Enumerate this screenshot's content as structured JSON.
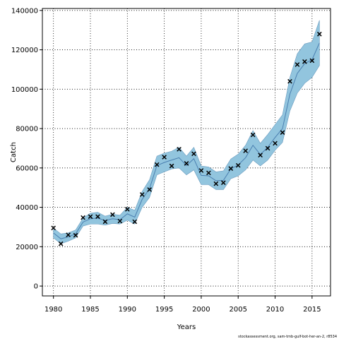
{
  "chart_data": {
    "type": "line",
    "title": "",
    "xlabel": "Years",
    "ylabel": "Catch",
    "xlim": [
      1978.5,
      2017.5
    ],
    "ylim": [
      -5000,
      141000
    ],
    "xticks": [
      1980,
      1985,
      1990,
      1995,
      2000,
      2005,
      2010,
      2015
    ],
    "yticks": [
      0,
      20000,
      40000,
      60000,
      80000,
      100000,
      120000,
      140000
    ],
    "grid": true,
    "legend": "none",
    "colors": {
      "band": "#92c5de",
      "band_edge": "#6a9bbf",
      "line": "#4a7fb0",
      "marker": "#000000",
      "grid": "#000000"
    },
    "series": [
      {
        "kind": "band",
        "x": [
          1980,
          1981,
          1982,
          1983,
          1984,
          1985,
          1986,
          1987,
          1988,
          1989,
          1990,
          1991,
          1992,
          1993,
          1994,
          1995,
          1996,
          1997,
          1998,
          1999,
          2000,
          2001,
          2002,
          2003,
          2004,
          2005,
          2006,
          2007,
          2008,
          2009,
          2010,
          2011,
          2012,
          2013,
          2014,
          2015,
          2016
        ],
        "low": [
          24500,
          21500,
          22800,
          24500,
          30500,
          31500,
          31500,
          31000,
          31800,
          31500,
          33500,
          31500,
          40000,
          45000,
          56500,
          58000,
          59500,
          60000,
          56500,
          59000,
          51500,
          51500,
          49000,
          49000,
          54500,
          56000,
          59000,
          64000,
          61000,
          64000,
          69000,
          73000,
          89000,
          98000,
          103000,
          106000,
          112000
        ],
        "high": [
          29500,
          26500,
          27000,
          28500,
          34500,
          37000,
          37500,
          35500,
          36500,
          36000,
          40000,
          38500,
          48000,
          54000,
          66000,
          67500,
          68500,
          70500,
          66000,
          70500,
          61000,
          60500,
          58000,
          58500,
          64500,
          67000,
          71500,
          79000,
          72500,
          77000,
          82000,
          87000,
          106000,
          118000,
          123000,
          124000,
          135000
        ]
      },
      {
        "kind": "line",
        "x": [
          1980,
          1981,
          1982,
          1983,
          1984,
          1985,
          1986,
          1987,
          1988,
          1989,
          1990,
          1991,
          1992,
          1993,
          1994,
          1995,
          1996,
          1997,
          1998,
          1999,
          2000,
          2001,
          2002,
          2003,
          2004,
          2005,
          2006,
          2007,
          2008,
          2009,
          2010,
          2011,
          2012,
          2013,
          2014,
          2015,
          2016
        ],
        "y": [
          27000,
          24000,
          25000,
          26500,
          32500,
          34200,
          34500,
          33300,
          34200,
          33700,
          36700,
          35000,
          44000,
          49500,
          61200,
          62800,
          64000,
          65200,
          61200,
          64700,
          56200,
          56000,
          53500,
          53700,
          59500,
          61500,
          65200,
          71500,
          66800,
          70500,
          75500,
          80000,
          97500,
          108000,
          113000,
          115000,
          123500
        ]
      },
      {
        "kind": "observed",
        "x": [
          1980,
          1981,
          1982,
          1983,
          1984,
          1985,
          1986,
          1987,
          1988,
          1989,
          1990,
          1991,
          1992,
          1993,
          1994,
          1995,
          1996,
          1997,
          1998,
          1999,
          2000,
          2001,
          2002,
          2003,
          2004,
          2005,
          2006,
          2007,
          2008,
          2009,
          2010,
          2011,
          2012,
          2013,
          2014,
          2015,
          2016
        ],
        "y": [
          29500,
          21500,
          26000,
          25800,
          34800,
          35300,
          35300,
          32700,
          36300,
          33000,
          39000,
          32700,
          46500,
          49000,
          61700,
          65500,
          61000,
          69500,
          62300,
          67200,
          58700,
          57500,
          52000,
          52500,
          59700,
          61300,
          68700,
          76800,
          66500,
          70000,
          72500,
          78000,
          104000,
          112500,
          114000,
          114500,
          128000
        ]
      }
    ]
  },
  "footnote": "stockassessment.org, sam-tmb-gulf-bot-her-an-2, r8534"
}
